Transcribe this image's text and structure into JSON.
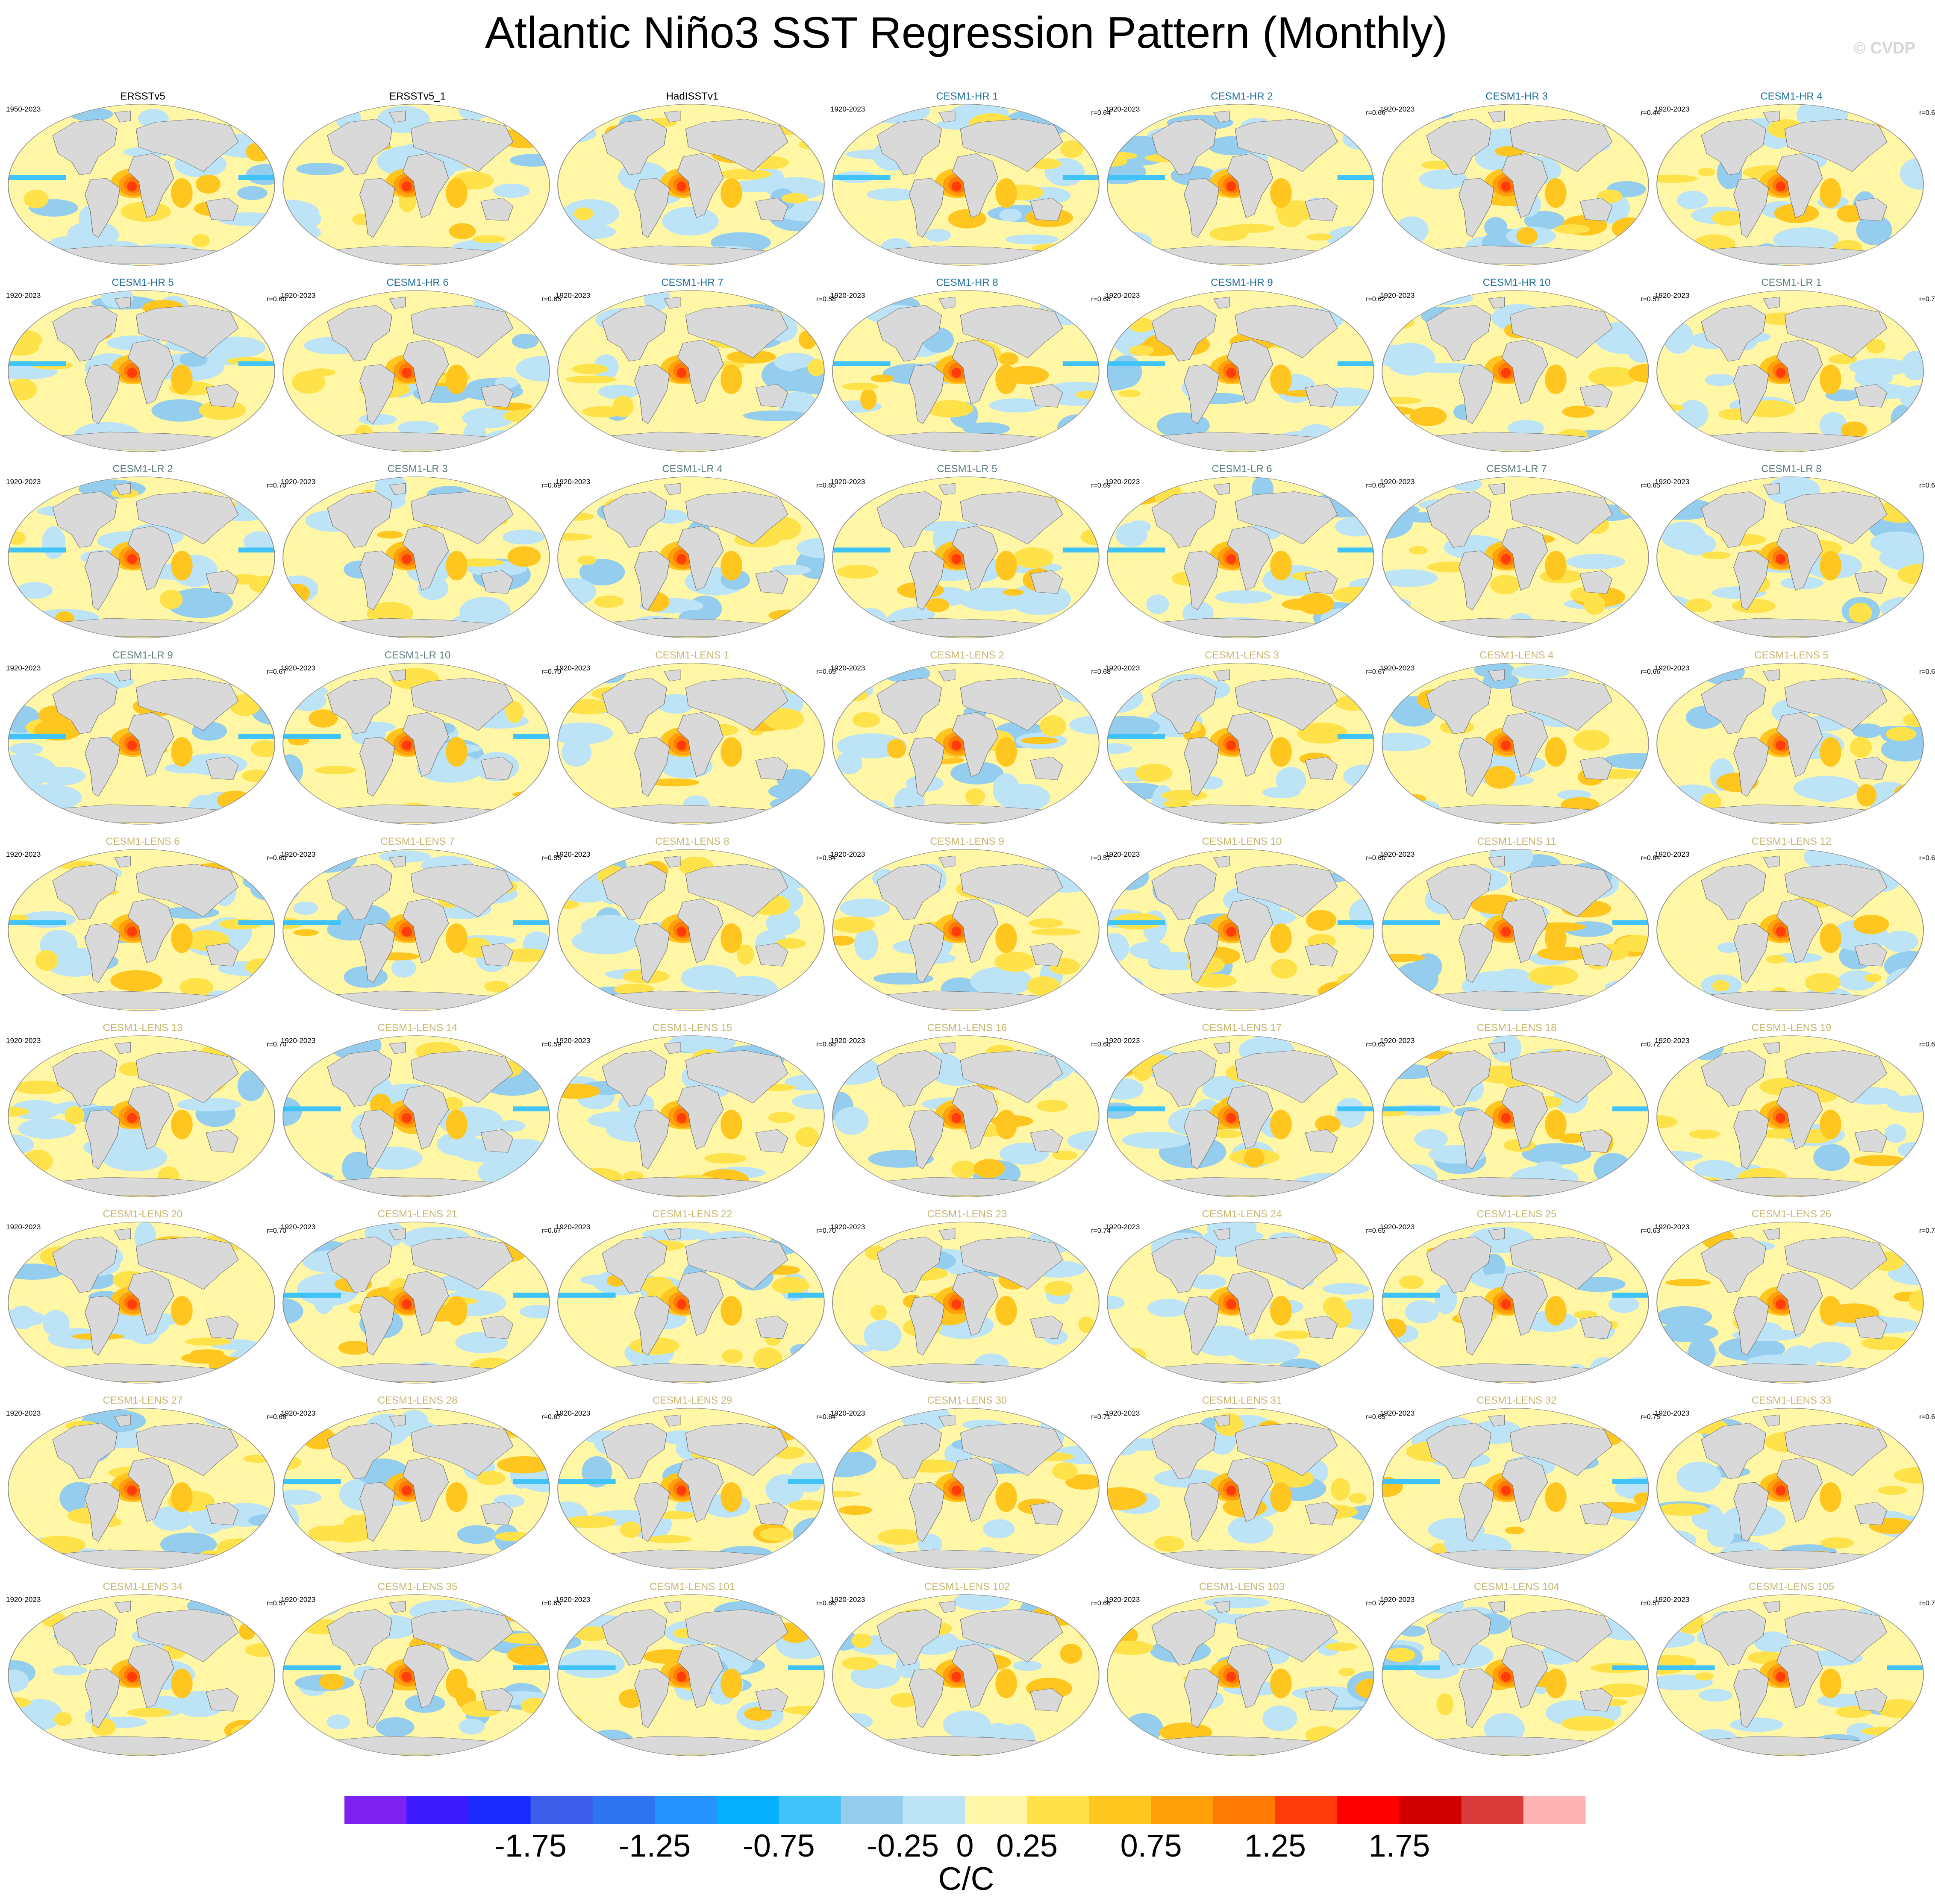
{
  "title": "Atlantic Niño3 SST Regression Pattern (Monthly)",
  "watermark": "© CVDP",
  "colors": {
    "obs_title": "#000000",
    "cesm1_hr_title": "#1f6f9a",
    "cesm1_lr_title": "#5f7f80",
    "cesm1_lens_title": "#c8b670",
    "land": "#d9d9d9",
    "ocean_mean": "#fff6a8"
  },
  "chart_data": {
    "type": "heatmap",
    "projection": "robinson-like global map",
    "variable": "SST regression on Atlantic Niño3 index",
    "panels": [
      {
        "name": "ERSSTv5",
        "period": "1950-2023",
        "r": "",
        "group": "obs"
      },
      {
        "name": "ERSSTv5_1",
        "period": "",
        "r": "",
        "group": "obs"
      },
      {
        "name": "HadISSTv1",
        "period": "",
        "r": "",
        "group": "obs"
      },
      {
        "name": "CESM1-HR 1",
        "period": "1920-2023",
        "r": "r=0.64",
        "group": "hr"
      },
      {
        "name": "CESM1-HR 2",
        "period": "1920-2023",
        "r": "r=0.66",
        "group": "hr"
      },
      {
        "name": "CESM1-HR 3",
        "period": "1920-2023",
        "r": "r=0.44",
        "group": "hr"
      },
      {
        "name": "CESM1-HR 4",
        "period": "1920-2023",
        "r": "r=0.6",
        "group": "hr"
      },
      {
        "name": "CESM1-HR 5",
        "period": "1920-2023",
        "r": "r=0.60",
        "group": "hr"
      },
      {
        "name": "CESM1-HR 6",
        "period": "1920-2023",
        "r": "r=0.65",
        "group": "hr"
      },
      {
        "name": "CESM1-HR 7",
        "period": "1920-2023",
        "r": "r=0.58",
        "group": "hr"
      },
      {
        "name": "CESM1-HR 8",
        "period": "1920-2023",
        "r": "r=0.68",
        "group": "hr"
      },
      {
        "name": "CESM1-HR 9",
        "period": "1920-2023",
        "r": "r=0.62",
        "group": "hr"
      },
      {
        "name": "CESM1-HR 10",
        "period": "1920-2023",
        "r": "r=0.57",
        "group": "hr"
      },
      {
        "name": "CESM1-LR 1",
        "period": "1920-2023",
        "r": "r=0.7",
        "group": "lr"
      },
      {
        "name": "CESM1-LR 2",
        "period": "1920-2023",
        "r": "r=0.70",
        "group": "lr"
      },
      {
        "name": "CESM1-LR 3",
        "period": "1920-2023",
        "r": "r=0.69",
        "group": "lr"
      },
      {
        "name": "CESM1-LR 4",
        "period": "1920-2023",
        "r": "r=0.65",
        "group": "lr"
      },
      {
        "name": "CESM1-LR 5",
        "period": "1920-2023",
        "r": "r=0.69",
        "group": "lr"
      },
      {
        "name": "CESM1-LR 6",
        "period": "1920-2023",
        "r": "r=0.65",
        "group": "lr"
      },
      {
        "name": "CESM1-LR 7",
        "period": "1920-2023",
        "r": "r=0.65",
        "group": "lr"
      },
      {
        "name": "CESM1-LR 8",
        "period": "1920-2023",
        "r": "r=0.6",
        "group": "lr"
      },
      {
        "name": "CESM1-LR 9",
        "period": "1920-2023",
        "r": "r=0.67",
        "group": "lr"
      },
      {
        "name": "CESM1-LR 10",
        "period": "1920-2023",
        "r": "r=0.70",
        "group": "lr"
      },
      {
        "name": "CESM1-LENS 1",
        "period": "1920-2023",
        "r": "r=0.69",
        "group": "lens"
      },
      {
        "name": "CESM1-LENS 2",
        "period": "1920-2023",
        "r": "r=0.68",
        "group": "lens"
      },
      {
        "name": "CESM1-LENS 3",
        "period": "1920-2023",
        "r": "r=0.67",
        "group": "lens"
      },
      {
        "name": "CESM1-LENS 4",
        "period": "1920-2023",
        "r": "r=0.66",
        "group": "lens"
      },
      {
        "name": "CESM1-LENS 5",
        "period": "1920-2023",
        "r": "r=0.6",
        "group": "lens"
      },
      {
        "name": "CESM1-LENS 6",
        "period": "1920-2023",
        "r": "r=0.60",
        "group": "lens"
      },
      {
        "name": "CESM1-LENS 7",
        "period": "1920-2023",
        "r": "r=0.55",
        "group": "lens"
      },
      {
        "name": "CESM1-LENS 8",
        "period": "1920-2023",
        "r": "r=0.54",
        "group": "lens"
      },
      {
        "name": "CESM1-LENS 9",
        "period": "1920-2023",
        "r": "r=0.57",
        "group": "lens"
      },
      {
        "name": "CESM1-LENS 10",
        "period": "1920-2023",
        "r": "r=0.60",
        "group": "lens"
      },
      {
        "name": "CESM1-LENS 11",
        "period": "1920-2023",
        "r": "r=0.64",
        "group": "lens"
      },
      {
        "name": "CESM1-LENS 12",
        "period": "1920-2023",
        "r": "r=0.6",
        "group": "lens"
      },
      {
        "name": "CESM1-LENS 13",
        "period": "1920-2023",
        "r": "r=0.70",
        "group": "lens"
      },
      {
        "name": "CESM1-LENS 14",
        "period": "1920-2023",
        "r": "r=0.59",
        "group": "lens"
      },
      {
        "name": "CESM1-LENS 15",
        "period": "1920-2023",
        "r": "r=0.68",
        "group": "lens"
      },
      {
        "name": "CESM1-LENS 16",
        "period": "1920-2023",
        "r": "r=0.68",
        "group": "lens"
      },
      {
        "name": "CESM1-LENS 17",
        "period": "1920-2023",
        "r": "r=0.65",
        "group": "lens"
      },
      {
        "name": "CESM1-LENS 18",
        "period": "1920-2023",
        "r": "r=0.72",
        "group": "lens"
      },
      {
        "name": "CESM1-LENS 19",
        "period": "1920-2023",
        "r": "r=0.6",
        "group": "lens"
      },
      {
        "name": "CESM1-LENS 20",
        "period": "1920-2023",
        "r": "r=0.70",
        "group": "lens"
      },
      {
        "name": "CESM1-LENS 21",
        "period": "1920-2023",
        "r": "r=0.67",
        "group": "lens"
      },
      {
        "name": "CESM1-LENS 22",
        "period": "1920-2023",
        "r": "r=0.70",
        "group": "lens"
      },
      {
        "name": "CESM1-LENS 23",
        "period": "1920-2023",
        "r": "r=0.74",
        "group": "lens"
      },
      {
        "name": "CESM1-LENS 24",
        "period": "1920-2023",
        "r": "r=0.65",
        "group": "lens"
      },
      {
        "name": "CESM1-LENS 25",
        "period": "1920-2023",
        "r": "r=0.63",
        "group": "lens"
      },
      {
        "name": "CESM1-LENS 26",
        "period": "1920-2023",
        "r": "r=0.7",
        "group": "lens"
      },
      {
        "name": "CESM1-LENS 27",
        "period": "1920-2023",
        "r": "r=0.68",
        "group": "lens"
      },
      {
        "name": "CESM1-LENS 28",
        "period": "1920-2023",
        "r": "r=0.67",
        "group": "lens"
      },
      {
        "name": "CESM1-LENS 29",
        "period": "1920-2023",
        "r": "r=0.64",
        "group": "lens"
      },
      {
        "name": "CESM1-LENS 30",
        "period": "1920-2023",
        "r": "r=0.71",
        "group": "lens"
      },
      {
        "name": "CESM1-LENS 31",
        "period": "1920-2023",
        "r": "r=0.65",
        "group": "lens"
      },
      {
        "name": "CESM1-LENS 32",
        "period": "1920-2023",
        "r": "r=0.75",
        "group": "lens"
      },
      {
        "name": "CESM1-LENS 33",
        "period": "1920-2023",
        "r": "r=0.6",
        "group": "lens"
      },
      {
        "name": "CESM1-LENS 34",
        "period": "1920-2023",
        "r": "r=0.57",
        "group": "lens"
      },
      {
        "name": "CESM1-LENS 35",
        "period": "1920-2023",
        "r": "r=0.65",
        "group": "lens"
      },
      {
        "name": "CESM1-LENS 101",
        "period": "1920-2023",
        "r": "r=0.66",
        "group": "lens"
      },
      {
        "name": "CESM1-LENS 102",
        "period": "1920-2023",
        "r": "r=0.66",
        "group": "lens"
      },
      {
        "name": "CESM1-LENS 103",
        "period": "1920-2023",
        "r": "r=0.72",
        "group": "lens"
      },
      {
        "name": "CESM1-LENS 104",
        "period": "1920-2023",
        "r": "r=0.57",
        "group": "lens"
      },
      {
        "name": "CESM1-LENS 105",
        "period": "1920-2023",
        "r": "r=0.7",
        "group": "lens"
      }
    ],
    "colorbar": {
      "unit": "C/C",
      "levels": [
        -2.25,
        -2,
        -1.75,
        -1.5,
        -1.25,
        -1,
        -0.75,
        -0.5,
        -0.25,
        0,
        0.25,
        0.5,
        0.75,
        1,
        1.25,
        1.5,
        1.75,
        2,
        2.25
      ],
      "tick_labels": [
        "-1.75",
        "-1.25",
        "-0.75",
        "-0.25",
        "0",
        "0.25",
        "0.75",
        "1.25",
        "1.75"
      ],
      "tick_values": [
        -1.75,
        -1.25,
        -0.75,
        -0.25,
        0,
        0.25,
        0.75,
        1.25,
        1.75
      ],
      "colors": [
        "#7d22f0",
        "#3c1cff",
        "#1a2bff",
        "#3d5ee8",
        "#2f74f0",
        "#2592ff",
        "#06b0ff",
        "#3fc3f8",
        "#94cdee",
        "#bde3f7",
        "#fff7a6",
        "#ffe24a",
        "#ffc61f",
        "#ff9f0a",
        "#ff7a05",
        "#ff3c0a",
        "#ff0000",
        "#d10000",
        "#d93a3a",
        "#ffb3b3"
      ]
    }
  }
}
